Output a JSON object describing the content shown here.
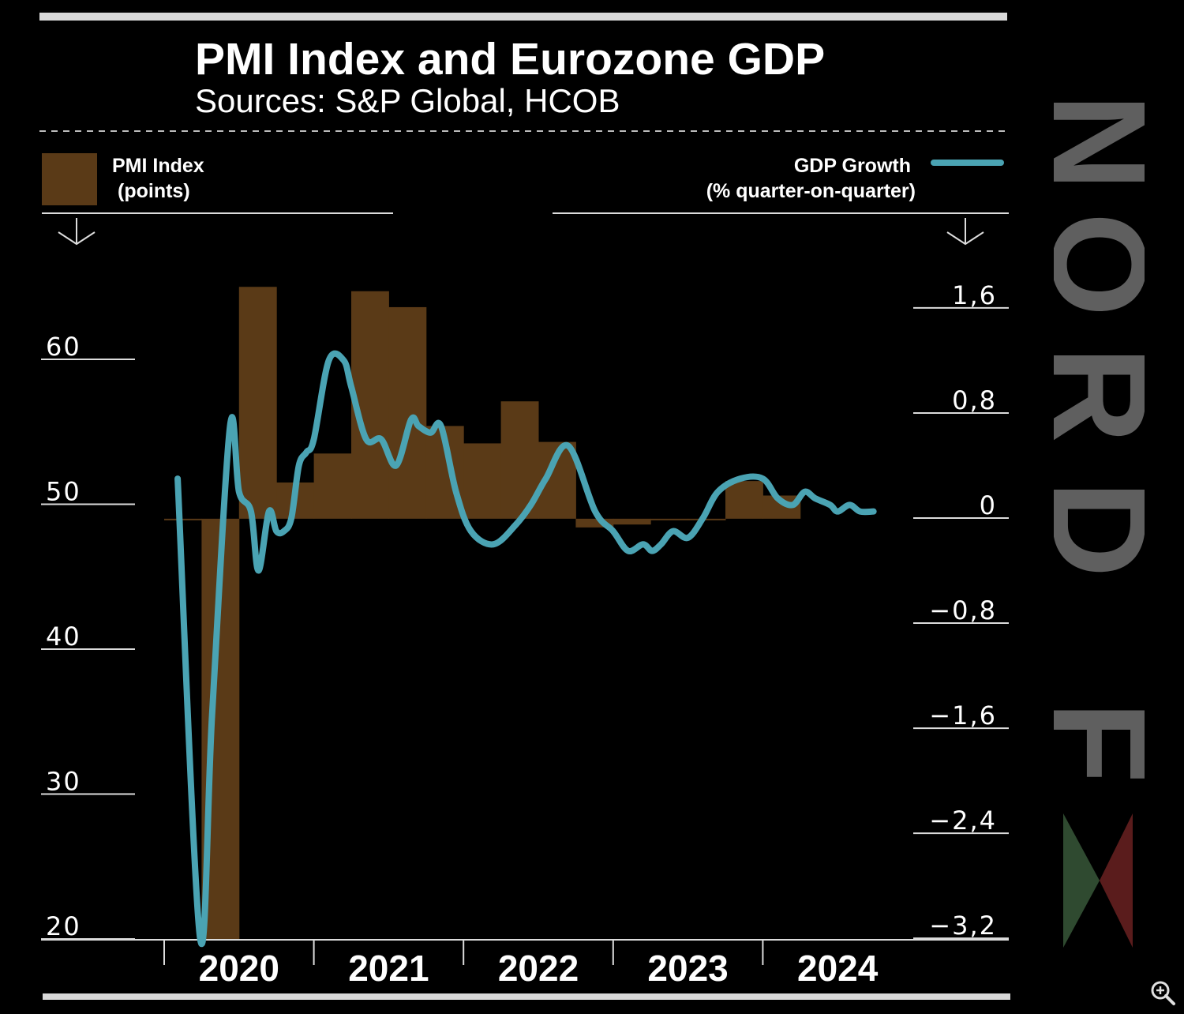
{
  "title": "PMI Index and Eurozone GDP",
  "subtitle": "Sources: S&P Global, HCOB",
  "legend": {
    "pmi_line1": "PMI Index",
    "pmi_line2": "(points)",
    "gdp_line1": "GDP Growth",
    "gdp_line2": "(% quarter-on-quarter)"
  },
  "brand": {
    "text": "NORD FX",
    "color_grey": "#5f5f5f",
    "color_green": "#2f4a30",
    "color_red": "#5a1c1c"
  },
  "colors": {
    "bar": "#5a3a17",
    "line": "#4aa3b3",
    "axis": "#dcdcdc",
    "background": "#000000"
  },
  "icons": {
    "zoom": "zoom-in-icon",
    "left_arrow": "arrow-down-icon",
    "right_arrow": "arrow-down-icon"
  },
  "chart_data": {
    "type": "bar",
    "x_labels": [
      "2020",
      "2021",
      "2022",
      "2023",
      "2024"
    ],
    "left_axis": {
      "label": "",
      "ylim": [
        20,
        66
      ],
      "ticks": [
        "60",
        "50",
        "40",
        "30",
        "20"
      ],
      "tick_values": [
        60,
        50,
        40,
        30,
        20
      ]
    },
    "right_axis": {
      "label": "",
      "ylim": [
        -3.2,
        2.0
      ],
      "ticks": [
        "1,6",
        "0,8",
        "0",
        "−0,8",
        "−1,6",
        "−2,4",
        "−3,2"
      ],
      "tick_values": [
        1.6,
        0.8,
        0,
        -0.8,
        -1.6,
        -2.4,
        -3.2
      ]
    },
    "series": [
      {
        "name": "PMI Index",
        "type": "bar",
        "axis": "left",
        "x_start": 2020.0,
        "x_step": 0.25,
        "values": [
          49.0,
          20.0,
          65.0,
          51.5,
          53.5,
          64.7,
          63.6,
          55.4,
          54.2,
          57.1,
          54.3,
          48.4,
          48.6,
          48.9,
          48.9,
          51.6,
          50.6
        ]
      },
      {
        "name": "GDP Growth",
        "type": "line",
        "axis": "right",
        "x": [
          2020.09,
          2020.24,
          2020.32,
          2020.44,
          2020.5,
          2020.58,
          2020.63,
          2020.7,
          2020.75,
          2020.8,
          2020.85,
          2020.9,
          2020.95,
          2021.0,
          2021.1,
          2021.2,
          2021.25,
          2021.35,
          2021.45,
          2021.55,
          2021.65,
          2021.7,
          2021.78,
          2021.85,
          2021.95,
          2022.05,
          2022.2,
          2022.35,
          2022.45,
          2022.55,
          2022.7,
          2022.88,
          2023.0,
          2023.1,
          2023.2,
          2023.26,
          2023.32,
          2023.4,
          2023.5,
          2023.6,
          2023.7,
          2023.85,
          2024.0,
          2024.1,
          2024.2,
          2024.28,
          2024.35,
          2024.45,
          2024.5,
          2024.58,
          2024.65,
          2024.74
        ],
        "values": [
          0.3,
          -3.2,
          -1.5,
          0.7,
          0.2,
          0.05,
          -0.4,
          0.05,
          -0.1,
          -0.1,
          0.0,
          0.4,
          0.5,
          0.6,
          1.2,
          1.2,
          1.0,
          0.6,
          0.6,
          0.4,
          0.75,
          0.7,
          0.65,
          0.7,
          0.2,
          -0.1,
          -0.2,
          -0.05,
          0.1,
          0.3,
          0.55,
          0.05,
          -0.1,
          -0.25,
          -0.2,
          -0.25,
          -0.2,
          -0.1,
          -0.15,
          0.0,
          0.2,
          0.3,
          0.3,
          0.15,
          0.1,
          0.2,
          0.15,
          0.1,
          0.05,
          0.1,
          0.05,
          0.05
        ]
      }
    ],
    "grid": false,
    "legend_placement": "top"
  }
}
